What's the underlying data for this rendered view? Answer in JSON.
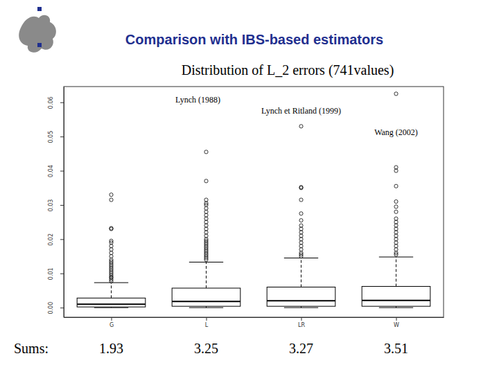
{
  "chart_data": {
    "type": "box",
    "title": "Comparison with IBS-based estimators",
    "subtitle": "Distribution of L_2 errors (741values)",
    "categories": [
      "G",
      "L",
      "LR",
      "W"
    ],
    "annotations": [
      "Lynch (1988)",
      "Lynch et Ritland (1999)",
      "Wang (2002)"
    ],
    "sums_label": "Sums:",
    "sums": [
      1.93,
      3.25,
      3.27,
      3.51
    ],
    "color": "#000000",
    "ylim": [
      -0.0028,
      0.0646
    ],
    "yticks": [
      {
        "value": 0,
        "label": "0.00"
      },
      0.01,
      0.02,
      0.03,
      0.04,
      0.05,
      0.06
    ],
    "boxes": [
      {
        "min": 0.0,
        "q1": 0.0002,
        "median": 0.001,
        "q3": 0.0028,
        "max": 0.0073,
        "outliers": [
          0.0077,
          0.0082,
          0.0087,
          0.009,
          0.0095,
          0.01,
          0.0105,
          0.011,
          0.0115,
          0.012,
          0.0125,
          0.013,
          0.0135,
          0.014,
          0.015,
          0.016,
          0.017,
          0.018,
          0.019,
          0.0195,
          0.023,
          0.0232,
          0.0315,
          0.033
        ]
      },
      {
        "min": 0.0,
        "q1": 0.0004,
        "median": 0.0018,
        "q3": 0.0057,
        "max": 0.0133,
        "outliers": [
          0.014,
          0.0145,
          0.015,
          0.0155,
          0.016,
          0.0165,
          0.017,
          0.0175,
          0.018,
          0.0185,
          0.019,
          0.0195,
          0.02,
          0.021,
          0.022,
          0.023,
          0.024,
          0.025,
          0.026,
          0.027,
          0.028,
          0.029,
          0.03,
          0.0305,
          0.0315,
          0.037,
          0.0455
        ]
      },
      {
        "min": 0.0,
        "q1": 0.0004,
        "median": 0.002,
        "q3": 0.006,
        "max": 0.0145,
        "outliers": [
          0.015,
          0.0155,
          0.016,
          0.017,
          0.018,
          0.019,
          0.02,
          0.021,
          0.022,
          0.023,
          0.024,
          0.0255,
          0.0275,
          0.0315,
          0.035,
          0.0352,
          0.053
        ]
      },
      {
        "min": 0.0,
        "q1": 0.0004,
        "median": 0.0021,
        "q3": 0.0062,
        "max": 0.0148,
        "outliers": [
          0.0155,
          0.016,
          0.017,
          0.018,
          0.019,
          0.02,
          0.021,
          0.022,
          0.023,
          0.024,
          0.025,
          0.026,
          0.028,
          0.0295,
          0.031,
          0.0355,
          0.04,
          0.041,
          0.0625
        ]
      }
    ]
  }
}
